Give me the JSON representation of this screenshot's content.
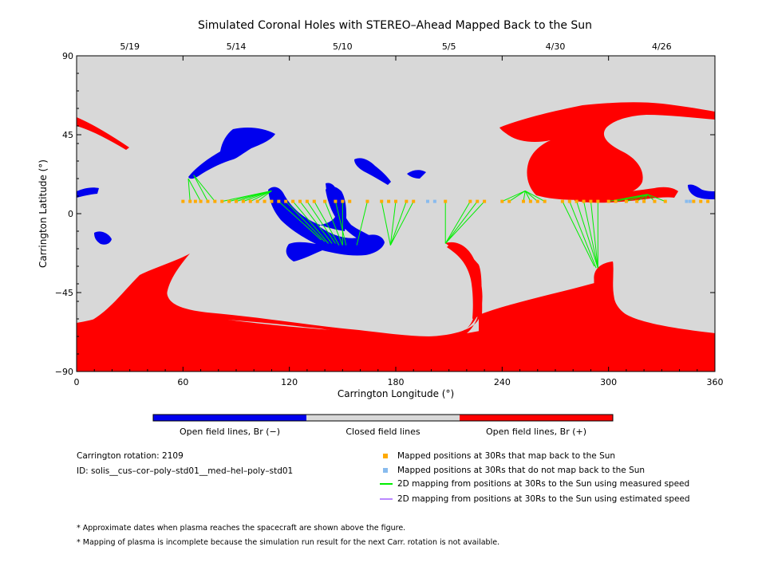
{
  "chart_data": {
    "type": "scatter",
    "title": "Simulated Coronal Holes with STEREO–Ahead Mapped Back to the Sun",
    "xlabel": "Carrington Longitude (°)",
    "ylabel": "Carrington Latitude (°)",
    "xlim": [
      0,
      360
    ],
    "ylim": [
      -90,
      90
    ],
    "x_ticks": [
      "0",
      "60",
      "120",
      "180",
      "240",
      "300",
      "360"
    ],
    "y_ticks": [
      "90",
      "45",
      "0",
      "−45",
      "−90"
    ],
    "top_axis_dates": [
      {
        "label": "5/19",
        "lon": 30
      },
      {
        "label": "5/14",
        "lon": 90
      },
      {
        "label": "5/10",
        "lon": 150
      },
      {
        "label": "5/5",
        "lon": 210
      },
      {
        "label": "4/30",
        "lon": 270
      },
      {
        "label": "4/26",
        "lon": 330
      }
    ],
    "colors": {
      "open_negative": "#0000ee",
      "closed": "#d8d8d8",
      "open_positive": "#ff0000",
      "mapped_ok": "#ffaa00",
      "mapped_no": "#88bbee",
      "measured_line": "#00ee00",
      "estimated_line": "#bb88ff"
    },
    "color_bar": {
      "labels": [
        "Open field lines, Br (−)",
        "Closed field lines",
        "Open field lines, Br (+)"
      ]
    },
    "mapped_positions": [
      {
        "lon": 60,
        "lat": 7
      },
      {
        "lon": 64,
        "lat": 7
      },
      {
        "lon": 67,
        "lat": 7
      },
      {
        "lon": 70,
        "lat": 7
      },
      {
        "lon": 74,
        "lat": 7
      },
      {
        "lon": 78,
        "lat": 7
      },
      {
        "lon": 82,
        "lat": 7
      },
      {
        "lon": 86,
        "lat": 7
      },
      {
        "lon": 90,
        "lat": 7
      },
      {
        "lon": 94,
        "lat": 7
      },
      {
        "lon": 98,
        "lat": 7
      },
      {
        "lon": 102,
        "lat": 7
      },
      {
        "lon": 106,
        "lat": 7
      },
      {
        "lon": 110,
        "lat": 7
      },
      {
        "lon": 114,
        "lat": 7
      },
      {
        "lon": 118,
        "lat": 7
      },
      {
        "lon": 122,
        "lat": 7
      },
      {
        "lon": 126,
        "lat": 7
      },
      {
        "lon": 130,
        "lat": 7
      },
      {
        "lon": 134,
        "lat": 7
      },
      {
        "lon": 140,
        "lat": 7
      },
      {
        "lon": 146,
        "lat": 7
      },
      {
        "lon": 150,
        "lat": 7
      },
      {
        "lon": 154,
        "lat": 7
      },
      {
        "lon": 164,
        "lat": 7
      },
      {
        "lon": 172,
        "lat": 7
      },
      {
        "lon": 176,
        "lat": 7
      },
      {
        "lon": 180,
        "lat": 7
      },
      {
        "lon": 186,
        "lat": 7
      },
      {
        "lon": 190,
        "lat": 7
      },
      {
        "lon": 208,
        "lat": 7
      },
      {
        "lon": 222,
        "lat": 7
      },
      {
        "lon": 226,
        "lat": 7
      },
      {
        "lon": 230,
        "lat": 7
      },
      {
        "lon": 240,
        "lat": 7
      },
      {
        "lon": 244,
        "lat": 7
      },
      {
        "lon": 252,
        "lat": 7
      },
      {
        "lon": 256,
        "lat": 7
      },
      {
        "lon": 260,
        "lat": 7
      },
      {
        "lon": 264,
        "lat": 7
      },
      {
        "lon": 274,
        "lat": 7
      },
      {
        "lon": 278,
        "lat": 7
      },
      {
        "lon": 282,
        "lat": 7
      },
      {
        "lon": 286,
        "lat": 7
      },
      {
        "lon": 290,
        "lat": 7
      },
      {
        "lon": 294,
        "lat": 7
      },
      {
        "lon": 300,
        "lat": 7
      },
      {
        "lon": 304,
        "lat": 7
      },
      {
        "lon": 310,
        "lat": 7
      },
      {
        "lon": 316,
        "lat": 7
      },
      {
        "lon": 320,
        "lat": 7
      },
      {
        "lon": 326,
        "lat": 7
      },
      {
        "lon": 332,
        "lat": 7
      },
      {
        "lon": 348,
        "lat": 7
      },
      {
        "lon": 352,
        "lat": 7
      },
      {
        "lon": 356,
        "lat": 7
      }
    ],
    "unmapped_positions": [
      {
        "lon": 198,
        "lat": 7
      },
      {
        "lon": 202,
        "lat": 7
      },
      {
        "lon": 344,
        "lat": 7
      },
      {
        "lon": 346,
        "lat": 7
      }
    ],
    "mapping_lines_measured": [
      {
        "from_lon": 64,
        "to_lon": 63,
        "to_lat": 20
      },
      {
        "from_lon": 70,
        "to_lon": 63,
        "to_lat": 20
      },
      {
        "from_lon": 74,
        "to_lon": 66,
        "to_lat": 22
      },
      {
        "from_lon": 78,
        "to_lon": 66,
        "to_lat": 22
      },
      {
        "from_lon": 82,
        "to_lon": 110,
        "to_lat": 13
      },
      {
        "from_lon": 86,
        "to_lon": 110,
        "to_lat": 13
      },
      {
        "from_lon": 90,
        "to_lon": 110,
        "to_lat": 13
      },
      {
        "from_lon": 94,
        "to_lon": 110,
        "to_lat": 13
      },
      {
        "from_lon": 98,
        "to_lon": 110,
        "to_lat": 13
      },
      {
        "from_lon": 102,
        "to_lon": 110,
        "to_lat": 13
      },
      {
        "from_lon": 114,
        "to_lon": 138,
        "to_lat": -15
      },
      {
        "from_lon": 118,
        "to_lon": 140,
        "to_lat": -16
      },
      {
        "from_lon": 122,
        "to_lon": 142,
        "to_lat": -17
      },
      {
        "from_lon": 126,
        "to_lon": 144,
        "to_lat": -17
      },
      {
        "from_lon": 130,
        "to_lon": 146,
        "to_lat": -17
      },
      {
        "from_lon": 134,
        "to_lon": 148,
        "to_lat": -18
      },
      {
        "from_lon": 140,
        "to_lon": 150,
        "to_lat": -18
      },
      {
        "from_lon": 146,
        "to_lon": 152,
        "to_lat": -18
      },
      {
        "from_lon": 150,
        "to_lon": 150,
        "to_lat": -18
      },
      {
        "from_lon": 164,
        "to_lon": 158,
        "to_lat": -18
      },
      {
        "from_lon": 172,
        "to_lon": 177,
        "to_lat": -18
      },
      {
        "from_lon": 180,
        "to_lon": 177,
        "to_lat": -18
      },
      {
        "from_lon": 186,
        "to_lon": 177,
        "to_lat": -18
      },
      {
        "from_lon": 190,
        "to_lon": 177,
        "to_lat": -18
      },
      {
        "from_lon": 208,
        "to_lon": 208,
        "to_lat": -17
      },
      {
        "from_lon": 222,
        "to_lon": 208,
        "to_lat": -17
      },
      {
        "from_lon": 226,
        "to_lon": 208,
        "to_lat": -17
      },
      {
        "from_lon": 230,
        "to_lon": 208,
        "to_lat": -17
      },
      {
        "from_lon": 240,
        "to_lon": 253,
        "to_lat": 13
      },
      {
        "from_lon": 244,
        "to_lon": 253,
        "to_lat": 13
      },
      {
        "from_lon": 252,
        "to_lon": 253,
        "to_lat": 13
      },
      {
        "from_lon": 256,
        "to_lon": 253,
        "to_lat": 13
      },
      {
        "from_lon": 260,
        "to_lon": 253,
        "to_lat": 13
      },
      {
        "from_lon": 264,
        "to_lon": 253,
        "to_lat": 13
      },
      {
        "from_lon": 274,
        "to_lon": 292,
        "to_lat": -30
      },
      {
        "from_lon": 278,
        "to_lon": 293,
        "to_lat": -31
      },
      {
        "from_lon": 282,
        "to_lon": 294,
        "to_lat": -31
      },
      {
        "from_lon": 286,
        "to_lon": 294,
        "to_lat": -31
      },
      {
        "from_lon": 290,
        "to_lon": 294,
        "to_lat": -31
      },
      {
        "from_lon": 294,
        "to_lon": 294,
        "to_lat": -31
      },
      {
        "from_lon": 300,
        "to_lon": 322,
        "to_lat": 11
      },
      {
        "from_lon": 304,
        "to_lon": 322,
        "to_lat": 11
      },
      {
        "from_lon": 310,
        "to_lon": 322,
        "to_lat": 11
      },
      {
        "from_lon": 316,
        "to_lon": 322,
        "to_lat": 11
      },
      {
        "from_lon": 320,
        "to_lon": 322,
        "to_lat": 11
      },
      {
        "from_lon": 326,
        "to_lon": 322,
        "to_lat": 11
      },
      {
        "from_lon": 332,
        "to_lon": 322,
        "to_lat": 11
      }
    ],
    "legend": [
      {
        "marker": "square-orange",
        "label": "Mapped positions at 30Rs that map back to the Sun"
      },
      {
        "marker": "square-lightblue",
        "label": "Mapped positions at 30Rs that do not map back to the Sun"
      },
      {
        "marker": "line-green",
        "label": "2D mapping from positions at 30Rs to the Sun using measured speed"
      },
      {
        "marker": "line-purple",
        "label": "2D mapping from positions at 30Rs to the Sun using estimated speed"
      }
    ]
  },
  "info": {
    "rotation": "Carrington rotation: 2109",
    "id": "ID: solis__cus–cor–poly–std01__med–hel–poly–std01"
  },
  "notes": [
    "* Approximate dates when plasma reaches the spacecraft are shown above the figure.",
    "* Mapping of plasma is incomplete because the simulation run result for the next Carr. rotation is not available."
  ]
}
